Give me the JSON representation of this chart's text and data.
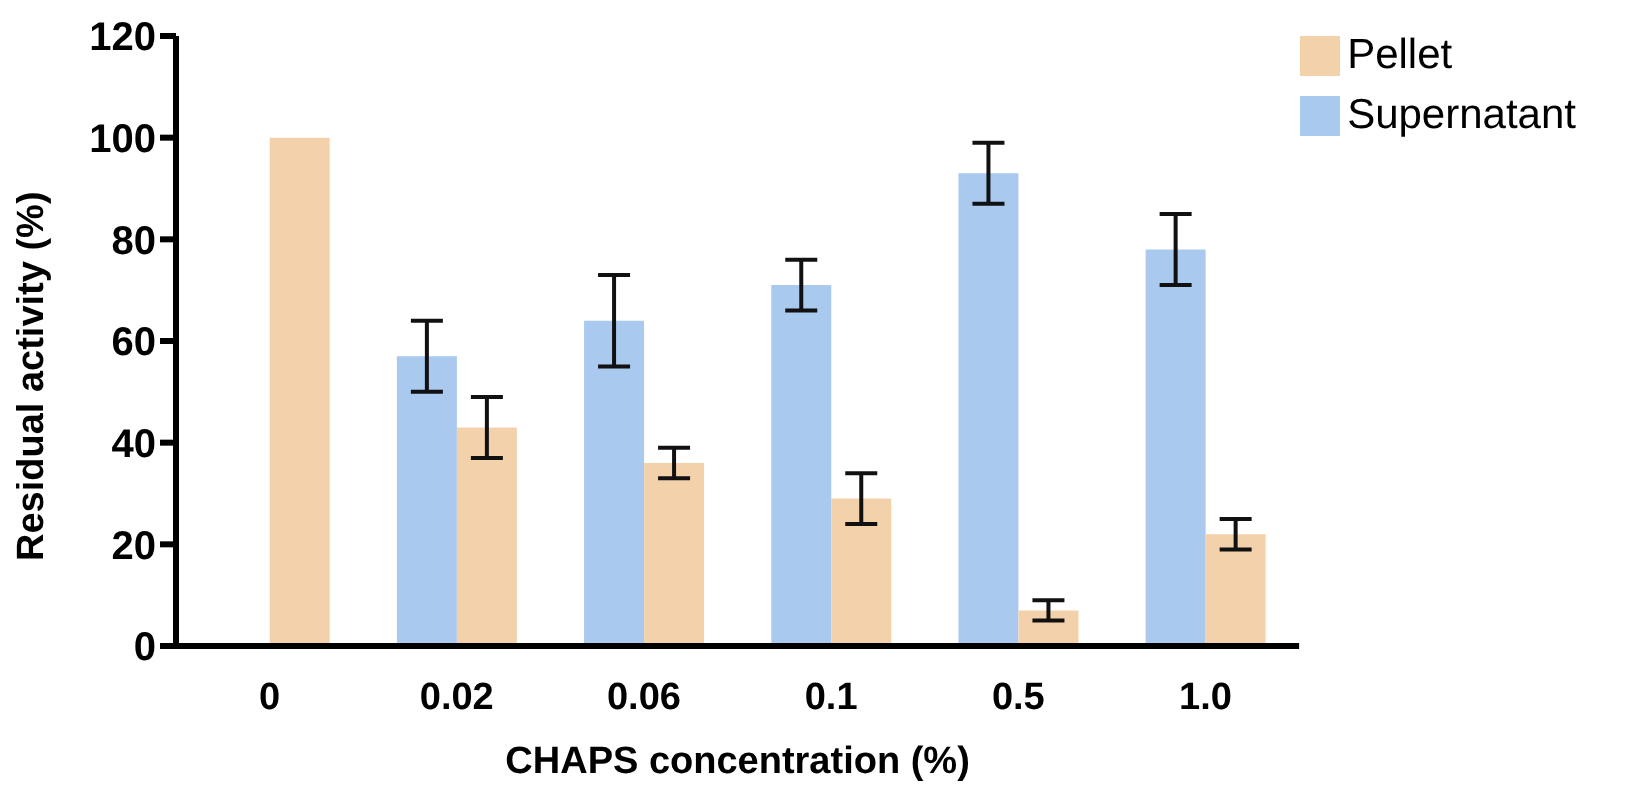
{
  "chart_data": {
    "type": "bar",
    "xlabel": "CHAPS concentration (%)",
    "ylabel": "Residual activity (%)",
    "categories": [
      "0",
      "0.02",
      "0.06",
      "0.1",
      "0.5",
      "1.0"
    ],
    "series": [
      {
        "name": "Supernatant",
        "color": "#a9c9ef",
        "values": [
          null,
          57,
          64,
          71,
          93,
          78
        ],
        "errors": [
          null,
          [
            50,
            64
          ],
          [
            55,
            73
          ],
          [
            66,
            76
          ],
          [
            87,
            99
          ],
          [
            71,
            85
          ]
        ]
      },
      {
        "name": "Pellet",
        "color": "#f3d2ab",
        "values": [
          100,
          43,
          36,
          29,
          7,
          22
        ],
        "errors": [
          null,
          [
            37,
            49
          ],
          [
            33,
            39
          ],
          [
            24,
            34
          ],
          [
            5,
            9
          ],
          [
            19,
            25
          ]
        ]
      }
    ],
    "ylim": [
      0,
      120
    ],
    "yticks": [
      0,
      20,
      40,
      60,
      80,
      100,
      120
    ],
    "grid": false,
    "legend": "top right"
  }
}
